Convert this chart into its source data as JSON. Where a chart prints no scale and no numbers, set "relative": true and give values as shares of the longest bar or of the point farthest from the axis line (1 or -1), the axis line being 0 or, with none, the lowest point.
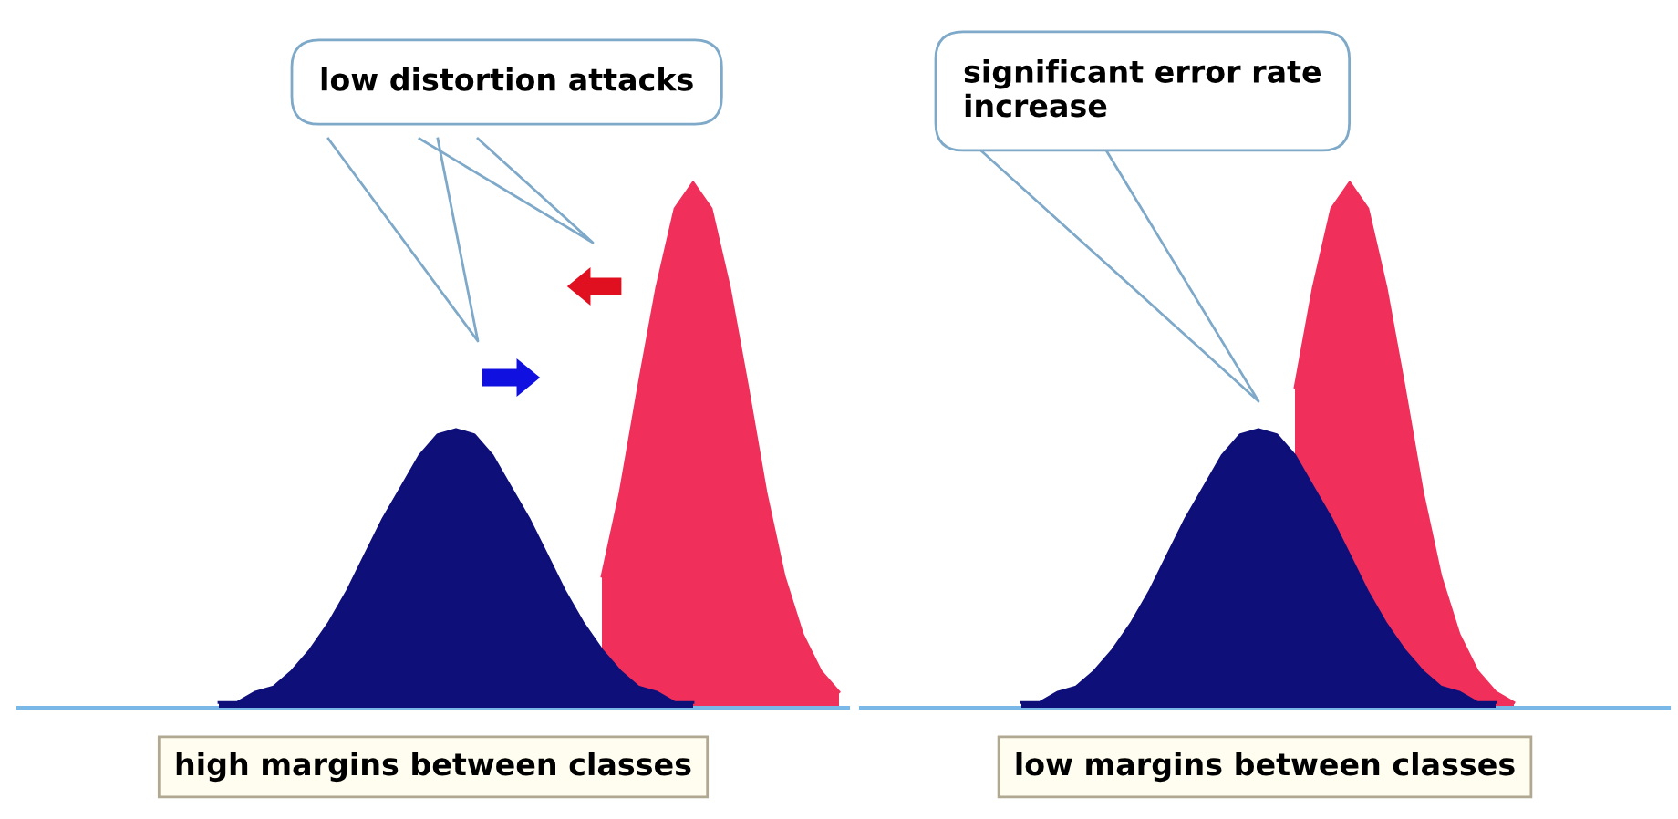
{
  "chart_data": [
    {
      "type": "area",
      "relative": true,
      "legend": false,
      "xlabel": "high margins between classes",
      "annotations": [
        "low distortion attacks"
      ],
      "categories": [
        null,
        null,
        null,
        null,
        null,
        null,
        null,
        null,
        null,
        null,
        null,
        null,
        null,
        null,
        null,
        null,
        null,
        null,
        null,
        null,
        null,
        null,
        null,
        null,
        null,
        null,
        null,
        null,
        null,
        null,
        null,
        null,
        null,
        null,
        null,
        null
      ],
      "series": [
        {
          "color": "#f0305a",
          "values": [
            null,
            null,
            null,
            null,
            null,
            null,
            null,
            null,
            null,
            null,
            null,
            null,
            null,
            null,
            null,
            null,
            null,
            null,
            null,
            null,
            null,
            null,
            0.25,
            0.41,
            0.61,
            0.8,
            0.95,
            1,
            0.95,
            0.8,
            0.61,
            0.41,
            0.25,
            0.14,
            0.07,
            0.03
          ]
        },
        {
          "color": "#0f0f7a",
          "values": [
            null,
            0.01,
            0.01,
            0.03,
            0.04,
            0.07,
            0.11,
            0.16,
            0.22,
            0.29,
            0.36,
            0.42,
            0.48,
            0.52,
            0.53,
            0.52,
            0.48,
            0.42,
            0.36,
            0.29,
            0.22,
            0.16,
            0.11,
            0.07,
            0.04,
            0.03,
            0.01,
            0.01,
            null,
            null,
            null,
            null,
            null,
            null,
            null,
            null
          ]
        }
      ]
    },
    {
      "type": "area",
      "relative": true,
      "legend": false,
      "xlabel": "low margins between classes",
      "annotations": [
        "significant error rate\nincrease"
      ],
      "categories": [
        null,
        null,
        null,
        null,
        null,
        null,
        null,
        null,
        null,
        null,
        null,
        null,
        null,
        null,
        null,
        null,
        null,
        null,
        null,
        null,
        null,
        null,
        null,
        null,
        null,
        null,
        null,
        null,
        null,
        null,
        null,
        null,
        null,
        null,
        null,
        null
      ],
      "series": [
        {
          "color": "#f0305a",
          "values": [
            null,
            null,
            null,
            null,
            null,
            null,
            null,
            null,
            null,
            null,
            null,
            null,
            null,
            null,
            null,
            null,
            0.61,
            0.8,
            0.95,
            1,
            0.95,
            0.8,
            0.61,
            0.41,
            0.25,
            0.14,
            0.07,
            0.03,
            0.01,
            null,
            null,
            null,
            null,
            null,
            null,
            null
          ]
        },
        {
          "color": "#0f0f7a",
          "values": [
            null,
            0.01,
            0.01,
            0.03,
            0.04,
            0.07,
            0.11,
            0.16,
            0.22,
            0.29,
            0.36,
            0.42,
            0.48,
            0.52,
            0.53,
            0.52,
            0.48,
            0.42,
            0.36,
            0.29,
            0.22,
            0.16,
            0.11,
            0.07,
            0.04,
            0.03,
            0.01,
            0.01,
            null,
            null,
            null,
            null,
            null,
            null,
            null,
            null
          ]
        }
      ]
    }
  ]
}
